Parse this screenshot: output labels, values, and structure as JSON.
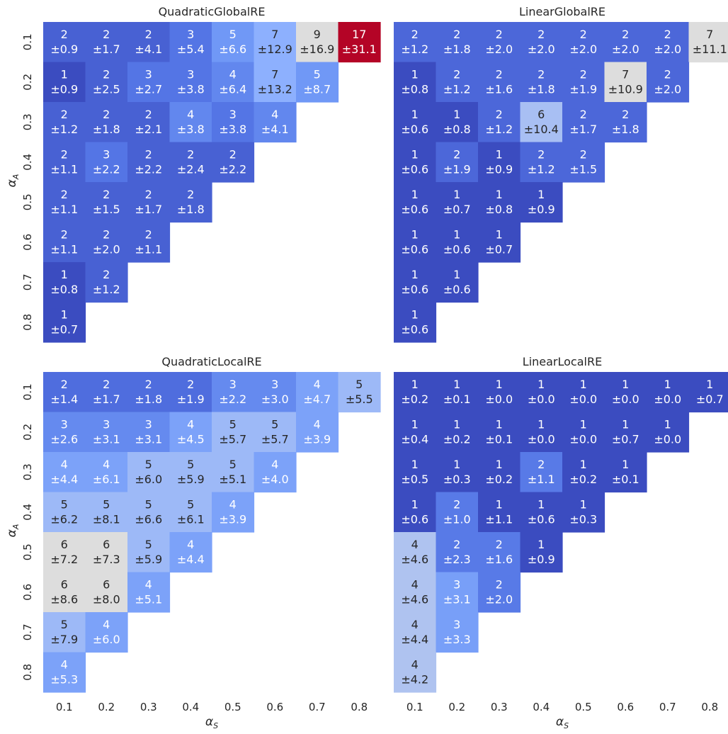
{
  "chart_data": [
    {
      "type": "heatmap",
      "title": "QuadraticGlobalRE",
      "x": [
        "0.1",
        "0.2",
        "0.3",
        "0.4",
        "0.5",
        "0.6",
        "0.7",
        "0.8"
      ],
      "y": [
        "0.1",
        "0.2",
        "0.3",
        "0.4",
        "0.5",
        "0.6",
        "0.7",
        "0.8"
      ],
      "xlabel": "",
      "ylabel": "αA",
      "colormap": "coolwarm",
      "vmin": 1,
      "vmax": 17,
      "values": [
        [
          2,
          2,
          2,
          3,
          5,
          7,
          9,
          17
        ],
        [
          1,
          2,
          3,
          3,
          4,
          7,
          5,
          null
        ],
        [
          2,
          2,
          2,
          4,
          3,
          4,
          null,
          null
        ],
        [
          2,
          3,
          2,
          2,
          2,
          null,
          null,
          null
        ],
        [
          2,
          2,
          2,
          2,
          null,
          null,
          null,
          null
        ],
        [
          2,
          2,
          2,
          null,
          null,
          null,
          null,
          null
        ],
        [
          1,
          2,
          null,
          null,
          null,
          null,
          null,
          null
        ],
        [
          1,
          null,
          null,
          null,
          null,
          null,
          null,
          null
        ]
      ],
      "errors": [
        [
          "±0.9",
          "±1.7",
          "±4.1",
          "±5.4",
          "±6.6",
          "±12.9",
          "±16.9",
          "±31.1"
        ],
        [
          "±0.9",
          "±2.5",
          "±2.7",
          "±3.8",
          "±6.4",
          "±13.2",
          "±8.7",
          null
        ],
        [
          "±1.2",
          "±1.8",
          "±2.1",
          "±3.8",
          "±3.8",
          "±4.1",
          null,
          null
        ],
        [
          "±1.1",
          "±2.2",
          "±2.2",
          "±2.4",
          "±2.2",
          null,
          null,
          null
        ],
        [
          "±1.1",
          "±1.5",
          "±1.7",
          "±1.8",
          null,
          null,
          null,
          null
        ],
        [
          "±1.1",
          "±2.0",
          "±1.1",
          null,
          null,
          null,
          null,
          null
        ],
        [
          "±0.8",
          "±1.2",
          null,
          null,
          null,
          null,
          null,
          null
        ],
        [
          "±0.7",
          null,
          null,
          null,
          null,
          null,
          null,
          null
        ]
      ]
    },
    {
      "type": "heatmap",
      "title": "LinearGlobalRE",
      "x": [
        "0.1",
        "0.2",
        "0.3",
        "0.4",
        "0.5",
        "0.6",
        "0.7",
        "0.8"
      ],
      "y": [
        "0.1",
        "0.2",
        "0.3",
        "0.4",
        "0.5",
        "0.6",
        "0.7",
        "0.8"
      ],
      "xlabel": "",
      "ylabel": "",
      "colormap": "coolwarm",
      "vmin": 1,
      "vmax": 13,
      "values": [
        [
          2,
          2,
          2,
          2,
          2,
          2,
          2,
          7
        ],
        [
          1,
          2,
          2,
          2,
          2,
          7,
          2,
          null
        ],
        [
          1,
          1,
          2,
          6,
          2,
          2,
          null,
          null
        ],
        [
          1,
          2,
          1,
          2,
          2,
          null,
          null,
          null
        ],
        [
          1,
          1,
          1,
          1,
          null,
          null,
          null,
          null
        ],
        [
          1,
          1,
          1,
          null,
          null,
          null,
          null,
          null
        ],
        [
          1,
          1,
          null,
          null,
          null,
          null,
          null,
          null
        ],
        [
          1,
          null,
          null,
          null,
          null,
          null,
          null,
          null
        ]
      ],
      "errors": [
        [
          "±1.2",
          "±1.8",
          "±2.0",
          "±2.0",
          "±2.0",
          "±2.0",
          "±2.0",
          "±11.1"
        ],
        [
          "±0.8",
          "±1.2",
          "±1.6",
          "±1.8",
          "±1.9",
          "±10.9",
          "±2.0",
          null
        ],
        [
          "±0.6",
          "±0.8",
          "±1.2",
          "±10.4",
          "±1.7",
          "±1.8",
          null,
          null
        ],
        [
          "±0.6",
          "±1.9",
          "±0.9",
          "±1.2",
          "±1.5",
          null,
          null,
          null
        ],
        [
          "±0.6",
          "±0.7",
          "±0.8",
          "±0.9",
          null,
          null,
          null,
          null
        ],
        [
          "±0.6",
          "±0.6",
          "±0.7",
          null,
          null,
          null,
          null,
          null
        ],
        [
          "±0.6",
          "±0.6",
          null,
          null,
          null,
          null,
          null,
          null
        ],
        [
          "±0.6",
          null,
          null,
          null,
          null,
          null,
          null,
          null
        ]
      ]
    },
    {
      "type": "heatmap",
      "title": "QuadraticLocalRE",
      "x": [
        "0.1",
        "0.2",
        "0.3",
        "0.4",
        "0.5",
        "0.6",
        "0.7",
        "0.8"
      ],
      "y": [
        "0.1",
        "0.2",
        "0.3",
        "0.4",
        "0.5",
        "0.6",
        "0.7",
        "0.8"
      ],
      "xlabel": "αS",
      "ylabel": "αA",
      "colormap": "coolwarm",
      "vmin": 1,
      "vmax": 11,
      "values": [
        [
          2,
          2,
          2,
          2,
          3,
          3,
          4,
          5
        ],
        [
          3,
          3,
          3,
          4,
          5,
          5,
          4,
          null
        ],
        [
          4,
          4,
          5,
          5,
          5,
          4,
          null,
          null
        ],
        [
          5,
          5,
          5,
          5,
          4,
          null,
          null,
          null
        ],
        [
          6,
          6,
          5,
          4,
          null,
          null,
          null,
          null
        ],
        [
          6,
          6,
          4,
          null,
          null,
          null,
          null,
          null
        ],
        [
          5,
          4,
          null,
          null,
          null,
          null,
          null,
          null
        ],
        [
          4,
          null,
          null,
          null,
          null,
          null,
          null,
          null
        ]
      ],
      "errors": [
        [
          "±1.4",
          "±1.7",
          "±1.8",
          "±1.9",
          "±2.2",
          "±3.0",
          "±4.7",
          "±5.5"
        ],
        [
          "±2.6",
          "±3.1",
          "±3.1",
          "±4.5",
          "±5.7",
          "±5.7",
          "±3.9",
          null
        ],
        [
          "±4.4",
          "±6.1",
          "±6.0",
          "±5.9",
          "±5.1",
          "±4.0",
          null,
          null
        ],
        [
          "±6.2",
          "±8.1",
          "±6.6",
          "±6.1",
          "±3.9",
          null,
          null,
          null
        ],
        [
          "±7.2",
          "±7.3",
          "±5.9",
          "±4.4",
          null,
          null,
          null,
          null
        ],
        [
          "±8.6",
          "±8.0",
          "±5.1",
          null,
          null,
          null,
          null,
          null
        ],
        [
          "±7.9",
          "±6.0",
          null,
          null,
          null,
          null,
          null,
          null
        ],
        [
          "±5.3",
          null,
          null,
          null,
          null,
          null,
          null,
          null
        ]
      ]
    },
    {
      "type": "heatmap",
      "title": "LinearLocalRE",
      "x": [
        "0.1",
        "0.2",
        "0.3",
        "0.4",
        "0.5",
        "0.6",
        "0.7",
        "0.8"
      ],
      "y": [
        "0.1",
        "0.2",
        "0.3",
        "0.4",
        "0.5",
        "0.6",
        "0.7",
        "0.8"
      ],
      "xlabel": "αS",
      "ylabel": "",
      "colormap": "coolwarm",
      "vmin": 1,
      "vmax": 8,
      "values": [
        [
          1,
          1,
          1,
          1,
          1,
          1,
          1,
          1
        ],
        [
          1,
          1,
          1,
          1,
          1,
          1,
          1,
          null
        ],
        [
          1,
          1,
          1,
          2,
          1,
          1,
          null,
          null
        ],
        [
          1,
          2,
          1,
          1,
          1,
          null,
          null,
          null
        ],
        [
          4,
          2,
          2,
          1,
          null,
          null,
          null,
          null
        ],
        [
          4,
          3,
          2,
          null,
          null,
          null,
          null,
          null
        ],
        [
          4,
          3,
          null,
          null,
          null,
          null,
          null,
          null
        ],
        [
          4,
          null,
          null,
          null,
          null,
          null,
          null,
          null
        ]
      ],
      "errors": [
        [
          "±0.2",
          "±0.1",
          "±0.0",
          "±0.0",
          "±0.0",
          "±0.0",
          "±0.0",
          "±0.7"
        ],
        [
          "±0.4",
          "±0.2",
          "±0.1",
          "±0.0",
          "±0.0",
          "±0.7",
          "±0.0",
          null
        ],
        [
          "±0.5",
          "±0.3",
          "±0.2",
          "±1.1",
          "±0.2",
          "±0.1",
          null,
          null
        ],
        [
          "±0.6",
          "±1.0",
          "±1.1",
          "±0.6",
          "±0.3",
          null,
          null,
          null
        ],
        [
          "±4.6",
          "±2.3",
          "±1.6",
          "±0.9",
          null,
          null,
          null,
          null
        ],
        [
          "±4.6",
          "±3.1",
          "±2.0",
          null,
          null,
          null,
          null,
          null
        ],
        [
          "±4.4",
          "±3.3",
          null,
          null,
          null,
          null,
          null,
          null
        ],
        [
          "±4.2",
          null,
          null,
          null,
          null,
          null,
          null,
          null
        ]
      ]
    }
  ]
}
